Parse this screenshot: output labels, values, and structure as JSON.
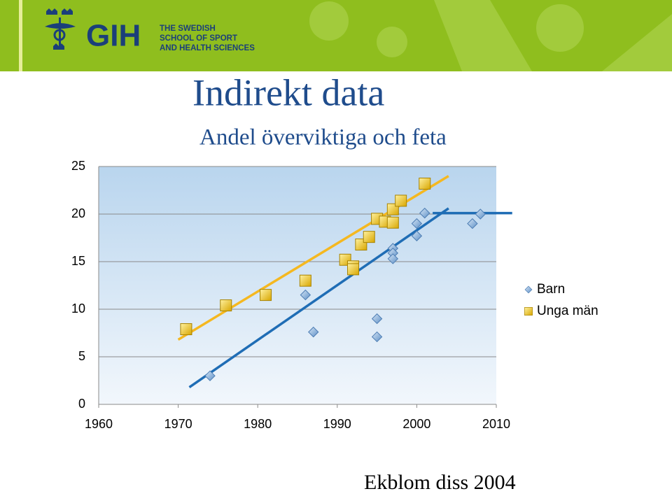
{
  "header": {
    "logo": "GIH",
    "logo_lines": [
      "THE SWEDISH",
      "SCHOOL OF SPORT",
      "AND HEALTH SCIENCES"
    ]
  },
  "chart_data": {
    "type": "scatter",
    "title": "Indirekt data",
    "subtitle": "Andel överviktiga och feta",
    "note": "Ekblom diss 2004",
    "xlim": [
      1960,
      2010
    ],
    "xticks": [
      1960,
      1970,
      1980,
      1990,
      2000,
      2010
    ],
    "ylim": [
      0,
      25
    ],
    "yticks": [
      0,
      5,
      10,
      15,
      20,
      25
    ],
    "grid": true,
    "legend": "right",
    "series": [
      {
        "name": "Barn",
        "color": "#7fa9d6",
        "marker": "diamond",
        "x": [
          1974,
          1986,
          1987,
          1995,
          1995,
          1997,
          1997,
          1997,
          2000,
          2000,
          2001,
          2007,
          2008
        ],
        "values": [
          3.0,
          11.5,
          7.6,
          9.0,
          7.1,
          16.4,
          15.9,
          15.3,
          17.7,
          19.0,
          20.1,
          19.0,
          20.0
        ]
      },
      {
        "name": "Unga män",
        "color": "#e8b900",
        "marker": "square",
        "x": [
          1971,
          1976,
          1981,
          1986,
          1991,
          1992,
          1992,
          1993,
          1994,
          1995,
          1996,
          1997,
          1997,
          1998,
          2001
        ],
        "values": [
          7.9,
          10.4,
          11.5,
          13.0,
          15.2,
          14.5,
          14.2,
          16.8,
          17.6,
          19.5,
          19.2,
          19.1,
          20.5,
          21.4,
          23.2
        ]
      }
    ],
    "lines": [
      {
        "color": "#f5b820",
        "x": [
          1970,
          2004
        ],
        "values": [
          6.8,
          24.0
        ]
      },
      {
        "color": "#1f6db5",
        "x": [
          1971.4,
          2004
        ],
        "values": [
          1.8,
          20.6
        ]
      },
      {
        "color": "#1f6db5",
        "x": [
          2002,
          2012
        ],
        "values": [
          20.1,
          20.1
        ]
      }
    ]
  }
}
